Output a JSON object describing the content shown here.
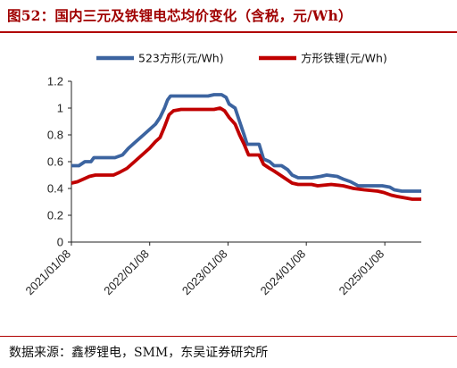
{
  "title": "图52：国内三元及铁锂电芯均价变化（含税，元/Wh）",
  "source": "数据来源：鑫椤锂电，SMM，东吴证券研究所",
  "colors": {
    "accent": "#b00000",
    "series_ncm": "#3c64a0",
    "series_lfp": "#c00000"
  },
  "chart_data": {
    "type": "line",
    "title": "国内三元及铁锂电芯均价变化（含税，元/Wh）",
    "xlabel": "",
    "ylabel": "",
    "x_ticks": [
      "2021/01/08",
      "2022/01/08",
      "2023/01/08",
      "2024/01/08",
      "2025/01/08"
    ],
    "y_ticks": [
      "0",
      "0.2",
      "0.4",
      "0.6",
      "0.8",
      "1",
      "1.2"
    ],
    "xlim": [
      "2021/01/08",
      "2025/06/27"
    ],
    "ylim": [
      0,
      1.2
    ],
    "grid": false,
    "legend_position": "top",
    "series": [
      {
        "name": "523方形(元/Wh)",
        "color": "#3c64a0",
        "points": [
          [
            "2021/01/08",
            0.57
          ],
          [
            "2021/02/12",
            0.57
          ],
          [
            "2021/03/12",
            0.6
          ],
          [
            "2021/04/09",
            0.6
          ],
          [
            "2021/04/23",
            0.63
          ],
          [
            "2021/06/04",
            0.63
          ],
          [
            "2021/07/30",
            0.63
          ],
          [
            "2021/09/03",
            0.65
          ],
          [
            "2021/10/01",
            0.7
          ],
          [
            "2021/11/05",
            0.75
          ],
          [
            "2021/12/10",
            0.8
          ],
          [
            "2022/01/07",
            0.84
          ],
          [
            "2022/02/04",
            0.88
          ],
          [
            "2022/02/25",
            0.93
          ],
          [
            "2022/03/18",
            1.0
          ],
          [
            "2022/04/01",
            1.06
          ],
          [
            "2022/04/15",
            1.09
          ],
          [
            "2022/06/03",
            1.09
          ],
          [
            "2022/08/05",
            1.09
          ],
          [
            "2022/10/07",
            1.09
          ],
          [
            "2022/11/04",
            1.1
          ],
          [
            "2022/12/09",
            1.1
          ],
          [
            "2022/12/30",
            1.08
          ],
          [
            "2023/01/13",
            1.03
          ],
          [
            "2023/02/10",
            1.0
          ],
          [
            "2023/03/03",
            0.9
          ],
          [
            "2023/03/24",
            0.8
          ],
          [
            "2023/04/07",
            0.73
          ],
          [
            "2023/06/02",
            0.73
          ],
          [
            "2023/06/23",
            0.62
          ],
          [
            "2023/07/21",
            0.6
          ],
          [
            "2023/08/11",
            0.57
          ],
          [
            "2023/09/15",
            0.57
          ],
          [
            "2023/10/13",
            0.54
          ],
          [
            "2023/11/03",
            0.5
          ],
          [
            "2023/12/01",
            0.48
          ],
          [
            "2024/02/02",
            0.48
          ],
          [
            "2024/03/15",
            0.49
          ],
          [
            "2024/04/12",
            0.5
          ],
          [
            "2024/05/31",
            0.49
          ],
          [
            "2024/06/28",
            0.47
          ],
          [
            "2024/08/02",
            0.45
          ],
          [
            "2024/09/06",
            0.42
          ],
          [
            "2024/11/01",
            0.42
          ],
          [
            "2024/12/27",
            0.42
          ],
          [
            "2025/01/31",
            0.41
          ],
          [
            "2025/02/21",
            0.39
          ],
          [
            "2025/03/28",
            0.38
          ],
          [
            "2025/05/02",
            0.38
          ],
          [
            "2025/05/30",
            0.38
          ],
          [
            "2025/06/27",
            0.38
          ]
        ]
      },
      {
        "name": "方形铁锂(元/Wh)",
        "color": "#c00000",
        "points": [
          [
            "2021/01/08",
            0.44
          ],
          [
            "2021/02/05",
            0.45
          ],
          [
            "2021/03/05",
            0.47
          ],
          [
            "2021/04/02",
            0.49
          ],
          [
            "2021/04/30",
            0.5
          ],
          [
            "2021/06/25",
            0.5
          ],
          [
            "2021/07/23",
            0.5
          ],
          [
            "2021/08/20",
            0.52
          ],
          [
            "2021/09/24",
            0.55
          ],
          [
            "2021/10/29",
            0.6
          ],
          [
            "2021/12/03",
            0.65
          ],
          [
            "2022/01/07",
            0.7
          ],
          [
            "2022/02/04",
            0.75
          ],
          [
            "2022/02/25",
            0.78
          ],
          [
            "2022/03/18",
            0.86
          ],
          [
            "2022/04/08",
            0.95
          ],
          [
            "2022/04/29",
            0.98
          ],
          [
            "2022/06/03",
            0.99
          ],
          [
            "2022/08/05",
            0.99
          ],
          [
            "2022/10/07",
            0.99
          ],
          [
            "2022/11/04",
            0.99
          ],
          [
            "2022/12/02",
            1.0
          ],
          [
            "2022/12/23",
            0.98
          ],
          [
            "2023/01/13",
            0.93
          ],
          [
            "2023/02/10",
            0.88
          ],
          [
            "2023/03/03",
            0.8
          ],
          [
            "2023/03/24",
            0.73
          ],
          [
            "2023/04/14",
            0.65
          ],
          [
            "2023/06/02",
            0.65
          ],
          [
            "2023/06/23",
            0.58
          ],
          [
            "2023/07/21",
            0.55
          ],
          [
            "2023/08/11",
            0.53
          ],
          [
            "2023/09/08",
            0.5
          ],
          [
            "2023/10/06",
            0.47
          ],
          [
            "2023/11/03",
            0.44
          ],
          [
            "2023/12/01",
            0.43
          ],
          [
            "2024/02/02",
            0.43
          ],
          [
            "2024/03/01",
            0.42
          ],
          [
            "2024/05/03",
            0.43
          ],
          [
            "2024/06/28",
            0.42
          ],
          [
            "2024/08/16",
            0.4
          ],
          [
            "2024/10/04",
            0.39
          ],
          [
            "2024/12/06",
            0.38
          ],
          [
            "2025/01/03",
            0.37
          ],
          [
            "2025/02/07",
            0.35
          ],
          [
            "2025/03/07",
            0.34
          ],
          [
            "2025/04/11",
            0.33
          ],
          [
            "2025/05/16",
            0.32
          ],
          [
            "2025/06/27",
            0.32
          ]
        ]
      }
    ]
  }
}
